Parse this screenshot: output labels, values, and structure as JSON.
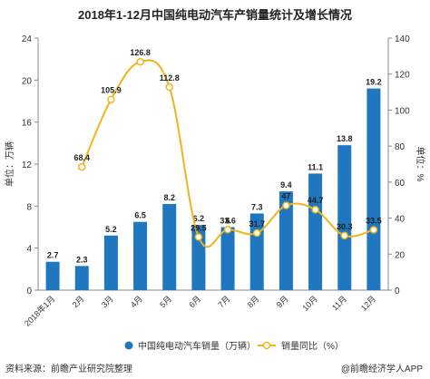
{
  "chart_data": {
    "type": "bar",
    "title": "2018年1-12月中国纯电动汽车产销量统计及增长情况",
    "categories": [
      "2018年1月",
      "2月",
      "3月",
      "4月",
      "5月",
      "6月",
      "7月",
      "8月",
      "9月",
      "10月",
      "11月",
      "12月"
    ],
    "series": [
      {
        "name": "中国纯电动汽车销量（万辆）",
        "type": "bar",
        "axis": "left",
        "color": "#1f77c0",
        "values": [
          2.7,
          2.3,
          5.2,
          6.5,
          8.2,
          6.2,
          6,
          7.3,
          9.4,
          11.1,
          13.8,
          19.2
        ]
      },
      {
        "name": "销量同比（%）",
        "type": "line",
        "axis": "right",
        "color": "#f0b41c",
        "values": [
          null,
          68.4,
          105.9,
          126.8,
          112.8,
          29.5,
          33.6,
          31.7,
          47,
          44.7,
          30.3,
          33.5
        ]
      }
    ],
    "ylabel": "单位：万辆",
    "ylabel_right": "单位：%",
    "ylim": [
      0,
      24
    ],
    "yticks": [
      0,
      4,
      8,
      12,
      16,
      20,
      24
    ],
    "ylim_right": [
      0,
      140
    ],
    "yticks_right": [
      0,
      20,
      40,
      60,
      80,
      100,
      120,
      140
    ],
    "grid": false,
    "legend": "bottom"
  },
  "footer": {
    "source": "资料来源：前瞻产业研究院整理",
    "brand": "@前瞻经济学人APP"
  },
  "colors": {
    "bar": "#1f77c0",
    "line": "#f0b41c",
    "axis": "#888888",
    "text": "#333333"
  }
}
